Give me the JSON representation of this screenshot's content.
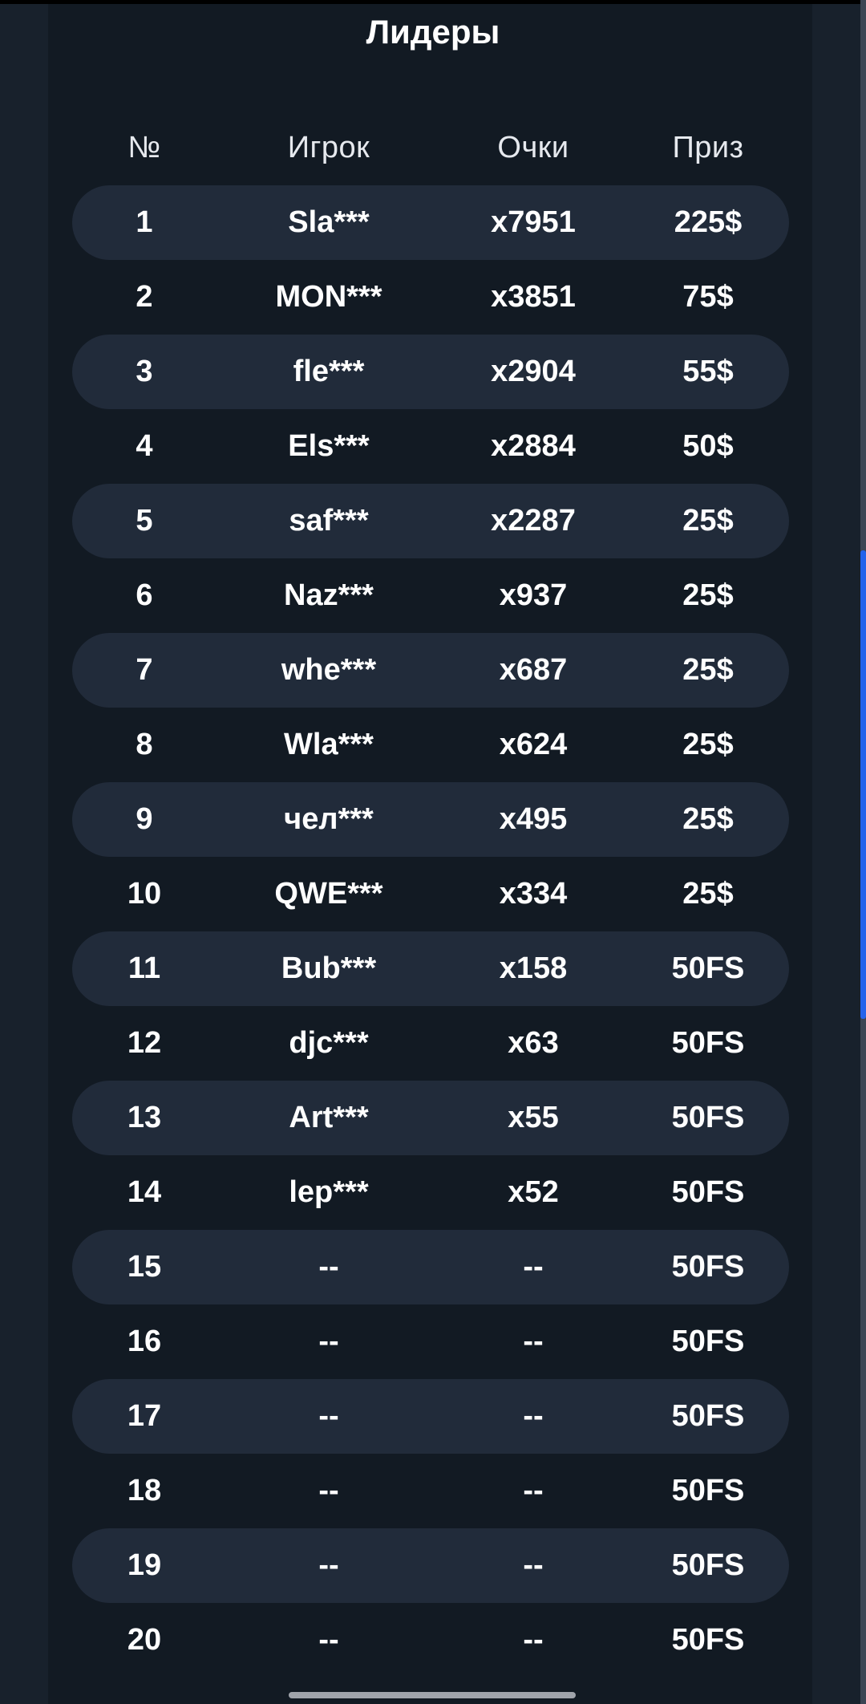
{
  "title": "Лидеры",
  "headers": {
    "rank": "№",
    "player": "Игрок",
    "points": "Очки",
    "prize": "Приз"
  },
  "rows": [
    {
      "rank": "1",
      "player": "Sla***",
      "points": "x7951",
      "prize": "225$"
    },
    {
      "rank": "2",
      "player": "MON***",
      "points": "x3851",
      "prize": "75$"
    },
    {
      "rank": "3",
      "player": "fle***",
      "points": "x2904",
      "prize": "55$"
    },
    {
      "rank": "4",
      "player": "Els***",
      "points": "x2884",
      "prize": "50$"
    },
    {
      "rank": "5",
      "player": "saf***",
      "points": "x2287",
      "prize": "25$"
    },
    {
      "rank": "6",
      "player": "Naz***",
      "points": "x937",
      "prize": "25$"
    },
    {
      "rank": "7",
      "player": "whe***",
      "points": "x687",
      "prize": "25$"
    },
    {
      "rank": "8",
      "player": "Wla***",
      "points": "x624",
      "prize": "25$"
    },
    {
      "rank": "9",
      "player": "чел***",
      "points": "x495",
      "prize": "25$"
    },
    {
      "rank": "10",
      "player": "QWE***",
      "points": "x334",
      "prize": "25$"
    },
    {
      "rank": "11",
      "player": "Bub***",
      "points": "x158",
      "prize": "50FS"
    },
    {
      "rank": "12",
      "player": "djc***",
      "points": "x63",
      "prize": "50FS"
    },
    {
      "rank": "13",
      "player": "Art***",
      "points": "x55",
      "prize": "50FS"
    },
    {
      "rank": "14",
      "player": "lep***",
      "points": "x52",
      "prize": "50FS"
    },
    {
      "rank": "15",
      "player": "--",
      "points": "--",
      "prize": "50FS"
    },
    {
      "rank": "16",
      "player": "--",
      "points": "--",
      "prize": "50FS"
    },
    {
      "rank": "17",
      "player": "--",
      "points": "--",
      "prize": "50FS"
    },
    {
      "rank": "18",
      "player": "--",
      "points": "--",
      "prize": "50FS"
    },
    {
      "rank": "19",
      "player": "--",
      "points": "--",
      "prize": "50FS"
    },
    {
      "rank": "20",
      "player": "--",
      "points": "--",
      "prize": "50FS"
    }
  ],
  "colors": {
    "background": "#18212c",
    "panel": "#121a23",
    "row_alt": "#212b3a",
    "scroll_thumb": "#2563eb"
  }
}
